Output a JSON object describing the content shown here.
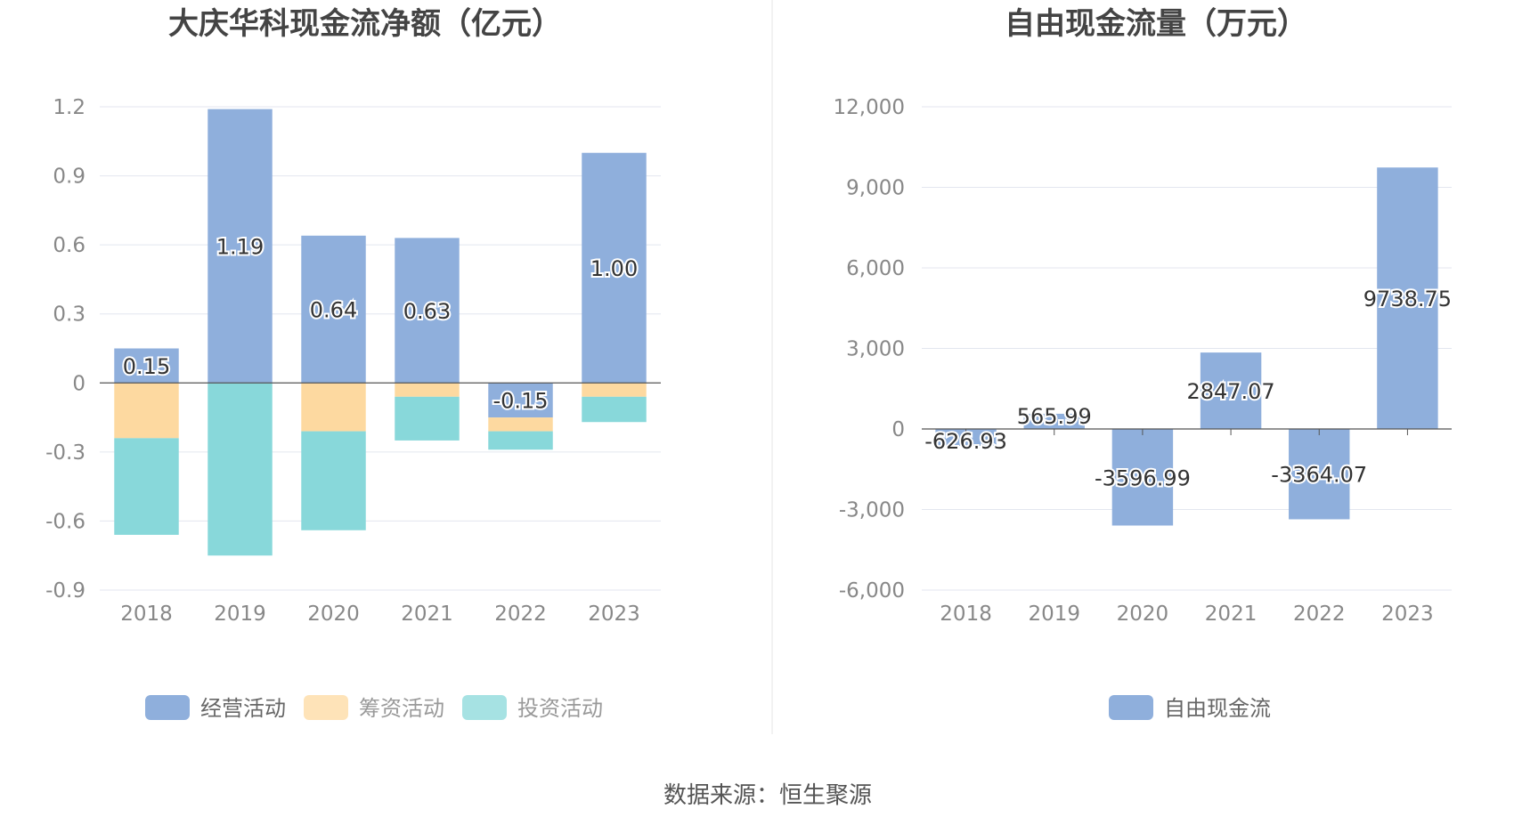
{
  "chart_data": [
    {
      "type": "bar",
      "stacked": true,
      "title": "大庆华科现金流净额（亿元）",
      "categories": [
        "2018",
        "2019",
        "2020",
        "2021",
        "2022",
        "2023"
      ],
      "ylim": [
        -0.9,
        1.2
      ],
      "yticks": [
        1.2,
        0.9,
        0.6,
        0.3,
        0,
        -0.3,
        -0.6,
        -0.9
      ],
      "ytick_labels": [
        "1.2",
        "0.9",
        "0.6",
        "0.3",
        "0",
        "-0.3",
        "-0.6",
        "-0.9"
      ],
      "grid": true,
      "legend_position": "bottom",
      "series": [
        {
          "name": "经营活动",
          "color": "#8fafdc",
          "values": [
            0.15,
            1.19,
            0.64,
            0.63,
            -0.15,
            1.0
          ],
          "labels": [
            "0.15",
            "1.19",
            "0.64",
            "0.63",
            "-0.15",
            "1.00"
          ]
        },
        {
          "name": "筹资活动",
          "color": "#fdd9a0",
          "values": [
            -0.24,
            0.0,
            -0.21,
            -0.06,
            -0.06,
            -0.06
          ]
        },
        {
          "name": "投资活动",
          "color": "#88d8da",
          "values": [
            -0.42,
            -0.75,
            -0.43,
            -0.19,
            -0.08,
            -0.11
          ]
        }
      ]
    },
    {
      "type": "bar",
      "title": "自由现金流量（万元）",
      "categories": [
        "2018",
        "2019",
        "2020",
        "2021",
        "2022",
        "2023"
      ],
      "ylim": [
        -6000,
        12000
      ],
      "yticks": [
        12000,
        9000,
        6000,
        3000,
        0,
        -3000,
        -6000
      ],
      "ytick_labels": [
        "12,000",
        "9,000",
        "6,000",
        "3,000",
        "0",
        "-3,000",
        "-6,000"
      ],
      "grid": true,
      "legend_position": "bottom",
      "series": [
        {
          "name": "自由现金流",
          "color": "#8fafdc",
          "values": [
            -626.93,
            565.99,
            -3596.99,
            2847.07,
            -3364.07,
            9738.75
          ],
          "labels": [
            "-626.93",
            "565.99",
            "-3596.99",
            "2847.07",
            "-3364.07",
            "9738.75"
          ]
        }
      ]
    }
  ],
  "source": "数据来源：恒生聚源"
}
